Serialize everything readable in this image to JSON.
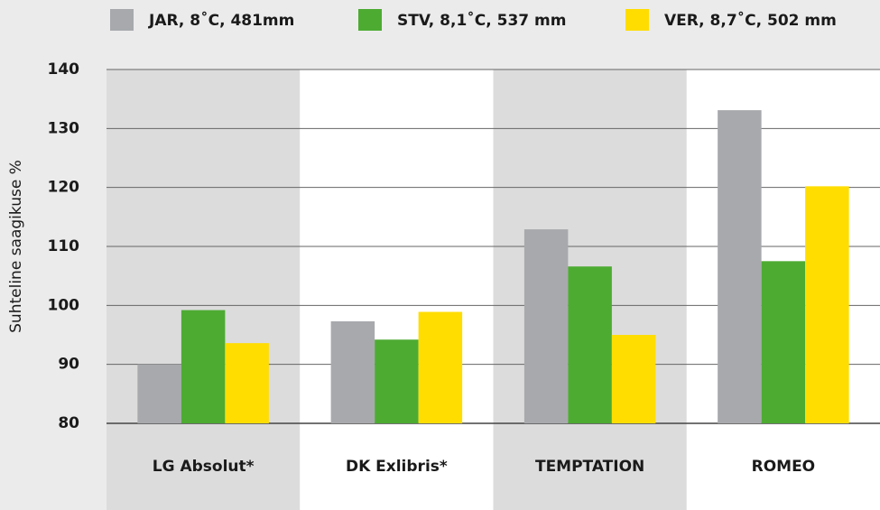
{
  "chart_data": {
    "type": "bar",
    "y_label": "Suhteline saagikuse %",
    "categories": [
      "LG Absolut*",
      "DK Exlibris*",
      "TEMPTATION",
      "ROMEO"
    ],
    "series": [
      {
        "name": "JAR, 8˚C, 481mm",
        "color": "#a7a9ac",
        "values": [
          90,
          97.3,
          112.9,
          133.1
        ]
      },
      {
        "name": "STV, 8,1˚C, 537 mm",
        "color": "#4dab32",
        "values": [
          99.2,
          94.2,
          106.6,
          107.5
        ]
      },
      {
        "name": "VER, 8,7˚C, 502 mm",
        "color": "#ffdd00",
        "values": [
          93.6,
          98.9,
          95.0,
          120.2
        ]
      }
    ],
    "ylim": [
      80,
      140
    ],
    "yticks": [
      80,
      90,
      100,
      110,
      120,
      130,
      140
    ],
    "grid": true
  }
}
